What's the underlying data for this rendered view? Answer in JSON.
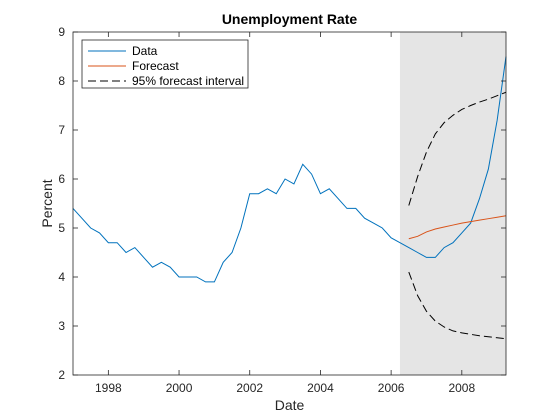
{
  "chart_data": {
    "type": "line",
    "title": "Unemployment Rate",
    "xlabel": "Date",
    "ylabel": "Percent",
    "xlim": [
      1997.0,
      2009.25
    ],
    "ylim": [
      2,
      9
    ],
    "x_ticks": [
      1998,
      2000,
      2002,
      2004,
      2006,
      2008
    ],
    "y_ticks": [
      2,
      3,
      4,
      5,
      6,
      7,
      8,
      9
    ],
    "grid": false,
    "legend_position": "top-left",
    "shaded_region": {
      "x_start": 2006.25,
      "x_end": 2009.25,
      "color": "#e5e5e5"
    },
    "series": [
      {
        "name": "Data",
        "color": "#0072bd",
        "style": "solid",
        "x": [
          1997.0,
          1997.25,
          1997.5,
          1997.75,
          1998.0,
          1998.25,
          1998.5,
          1998.75,
          1999.0,
          1999.25,
          1999.5,
          1999.75,
          2000.0,
          2000.25,
          2000.5,
          2000.75,
          2001.0,
          2001.25,
          2001.5,
          2001.75,
          2002.0,
          2002.25,
          2002.5,
          2002.75,
          2003.0,
          2003.25,
          2003.5,
          2003.75,
          2004.0,
          2004.25,
          2004.5,
          2004.75,
          2005.0,
          2005.25,
          2005.5,
          2005.75,
          2006.0,
          2006.25,
          2006.5,
          2006.75,
          2007.0,
          2007.25,
          2007.5,
          2007.75,
          2008.0,
          2008.25,
          2008.5,
          2008.75,
          2009.0,
          2009.25
        ],
        "y": [
          5.4,
          5.2,
          5.0,
          4.9,
          4.7,
          4.7,
          4.5,
          4.6,
          4.4,
          4.2,
          4.3,
          4.2,
          4.0,
          4.0,
          4.0,
          3.9,
          3.9,
          4.3,
          4.5,
          5.0,
          5.7,
          5.7,
          5.8,
          5.7,
          6.0,
          5.9,
          6.3,
          6.1,
          5.7,
          5.8,
          5.6,
          5.4,
          5.4,
          5.2,
          5.1,
          5.0,
          4.8,
          4.7,
          4.6,
          4.5,
          4.4,
          4.4,
          4.6,
          4.7,
          4.9,
          5.1,
          5.6,
          6.2,
          7.2,
          8.5
        ]
      },
      {
        "name": "Forecast",
        "color": "#d95319",
        "style": "solid",
        "x": [
          2006.5,
          2006.75,
          2007.0,
          2007.25,
          2007.5,
          2007.75,
          2008.0,
          2008.25,
          2008.5,
          2008.75,
          2009.0,
          2009.25
        ],
        "y": [
          4.78,
          4.83,
          4.92,
          4.98,
          5.02,
          5.06,
          5.1,
          5.13,
          5.16,
          5.19,
          5.22,
          5.25
        ]
      },
      {
        "name": "95% forecast interval",
        "color": "#000000",
        "style": "dashed",
        "x": [
          2006.5,
          2006.75,
          2007.0,
          2007.25,
          2007.5,
          2007.75,
          2008.0,
          2008.25,
          2008.5,
          2008.75,
          2009.0,
          2009.25
        ],
        "y": [
          5.46,
          6.05,
          6.55,
          6.92,
          7.15,
          7.3,
          7.42,
          7.5,
          7.57,
          7.63,
          7.7,
          7.77
        ]
      },
      {
        "name": "",
        "color": "#000000",
        "style": "dashed",
        "legend": false,
        "x": [
          2006.5,
          2006.75,
          2007.0,
          2007.25,
          2007.5,
          2007.75,
          2008.0,
          2008.25,
          2008.5,
          2008.75,
          2009.0,
          2009.25
        ],
        "y": [
          4.1,
          3.62,
          3.3,
          3.1,
          2.98,
          2.9,
          2.86,
          2.83,
          2.8,
          2.78,
          2.76,
          2.74
        ]
      }
    ]
  }
}
